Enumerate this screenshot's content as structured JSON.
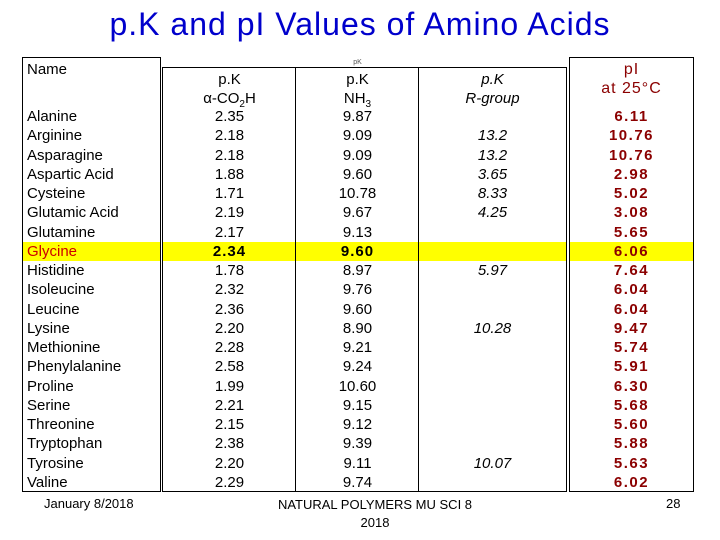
{
  "slide": {
    "title": "p.K and pI Values of Amino Acids"
  },
  "table": {
    "header": {
      "name": "Name",
      "acid_line1": "p.K",
      "acid_line2": "α-CO",
      "acid_sub": "2",
      "acid_line2b": "H",
      "amine_small": "pK",
      "amine_line1": "p.K",
      "amine_line2": "NH",
      "amine_sub": "3",
      "r_line1": "p.K",
      "r_line2": "R-group",
      "pi_line1": "pI",
      "pi_line2": "at 25°C"
    },
    "highlight_color": "#ffff00",
    "rows": [
      {
        "name": "Alanine",
        "acid": "2.35",
        "amine": "9.87",
        "r": "",
        "pi": "6.11"
      },
      {
        "name": "Arginine",
        "acid": "2.18",
        "amine": "9.09",
        "r": "13.2",
        "pi": "10.76"
      },
      {
        "name": "Asparagine",
        "acid": "2.18",
        "amine": "9.09",
        "r": "13.2",
        "pi": "10.76"
      },
      {
        "name": "Aspartic Acid",
        "acid": "1.88",
        "amine": "9.60",
        "r": "3.65",
        "pi": "2.98"
      },
      {
        "name": "Cysteine",
        "acid": "1.71",
        "amine": "10.78",
        "r": "8.33",
        "pi": "5.02"
      },
      {
        "name": "Glutamic Acid",
        "acid": "2.19",
        "amine": "9.67",
        "r": "4.25",
        "pi": "3.08"
      },
      {
        "name": "Glutamine",
        "acid": "2.17",
        "amine": "9.13",
        "r": "",
        "pi": "5.65"
      },
      {
        "name": "Glycine",
        "acid": "2.34",
        "amine": "9.60",
        "r": "",
        "pi": "6.06",
        "highlighted": true
      },
      {
        "name": "Histidine",
        "acid": "1.78",
        "amine": "8.97",
        "r": "5.97",
        "pi": "7.64"
      },
      {
        "name": "Isoleucine",
        "acid": "2.32",
        "amine": "9.76",
        "r": "",
        "pi": "6.04"
      },
      {
        "name": "Leucine",
        "acid": "2.36",
        "amine": "9.60",
        "r": "",
        "pi": "6.04"
      },
      {
        "name": "Lysine",
        "acid": "2.20",
        "amine": "8.90",
        "r": "10.28",
        "pi": "9.47"
      },
      {
        "name": "Methionine",
        "acid": "2.28",
        "amine": "9.21",
        "r": "",
        "pi": "5.74"
      },
      {
        "name": "Phenylalanine",
        "acid": "2.58",
        "amine": "9.24",
        "r": "",
        "pi": "5.91"
      },
      {
        "name": "Proline",
        "acid": "1.99",
        "amine": "10.60",
        "r": "",
        "pi": "6.30"
      },
      {
        "name": "Serine",
        "acid": "2.21",
        "amine": "9.15",
        "r": "",
        "pi": "5.68"
      },
      {
        "name": "Threonine",
        "acid": "2.15",
        "amine": "9.12",
        "r": "",
        "pi": "5.60"
      },
      {
        "name": "Tryptophan",
        "acid": "2.38",
        "amine": "9.39",
        "r": "",
        "pi": "5.88"
      },
      {
        "name": "Tyrosine",
        "acid": "2.20",
        "amine": "9.11",
        "r": "10.07",
        "pi": "5.63"
      },
      {
        "name": "Valine",
        "acid": "2.29",
        "amine": "9.74",
        "r": "",
        "pi": "6.02"
      }
    ]
  },
  "footer": {
    "date": "January 8/2018",
    "center_line1": "NATURAL POLYMERS MU SCI 8",
    "center_line2": "2018",
    "page": "28"
  }
}
